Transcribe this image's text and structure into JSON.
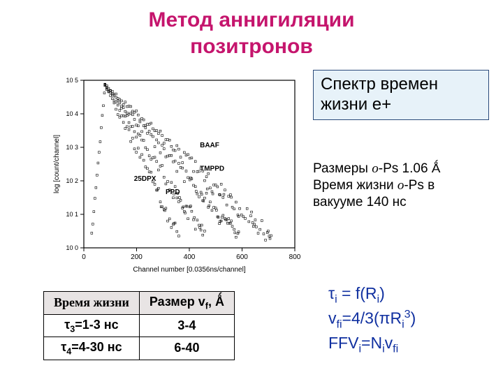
{
  "title_line1": "Метод аннигиляции",
  "title_line2": "позитронов",
  "infobox": "Спектр времен жизни е+",
  "desc_line1": "Размеры o-Ps 1.06 Ǻ",
  "desc_line2": "Время жизни o-Ps в вакууме 140 нс",
  "table": {
    "header1": "Время жизни",
    "header2_prefix": "Размер v",
    "header2_suffix": ", Ǻ",
    "rows": [
      {
        "life_sub": "3",
        "life_val": "1-3 нс",
        "size": "3-4"
      },
      {
        "life_sub": "4",
        "life_val": "4-30 нс",
        "size": "6-40"
      }
    ]
  },
  "formulas": {
    "f1_a": "τ",
    "f1_b": " = f(R",
    "f1_c": ")",
    "f2_a": "v",
    "f2_b": "=4/3(πR",
    "f2_c": ")",
    "f3_a": "FFV",
    "f3_b": "=N",
    "f3_c": "v"
  },
  "chart": {
    "xlabel": "Channel number [0.0356ns/channel]",
    "ylabel": "log [count/channel]",
    "xlim": [
      0,
      800
    ],
    "xtick_step": 200,
    "ylim": [
      0,
      5
    ],
    "yticks": [
      0,
      1,
      2,
      3,
      4,
      5
    ],
    "ytick_labels": [
      "10 0",
      "10 1",
      "10 2",
      "10 3",
      "10 4",
      "10 5"
    ],
    "series_labels": [
      "BAAF",
      "TMPPD",
      "25DPX",
      "PPD"
    ],
    "series_label_pos": {
      "BAAF": {
        "x": 440,
        "y": 3.0
      },
      "TMPPD": {
        "x": 440,
        "y": 2.3
      },
      "25DPX": {
        "x": 190,
        "y": 2.0
      },
      "PPD": {
        "x": 310,
        "y": 1.6
      }
    },
    "peak_x": 80,
    "decay_slopes": [
      0.0072,
      0.009,
      0.012,
      0.016
    ],
    "marker": "open-square",
    "marker_size": 3,
    "colors": {
      "axes": "#000000",
      "points": "#000000",
      "bg": "#ffffff"
    }
  },
  "style": {
    "title_color": "#c5156d",
    "infobox_bg": "#e7f2f9",
    "infobox_border": "#2a4a7a",
    "formula_color": "#1030a0",
    "title_fontsize": 30,
    "infobox_fontsize": 24,
    "desc_fontsize": 19,
    "table_fontsize": 18,
    "formula_fontsize": 23
  }
}
